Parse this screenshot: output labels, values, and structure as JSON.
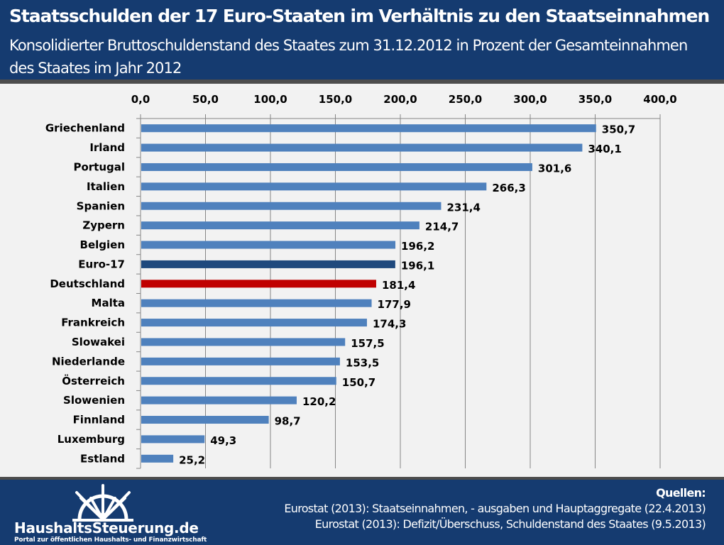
{
  "header": {
    "title": "Staatsschulden der 17 Euro-Staaten im Verhältnis zu den Staatseinnahmen",
    "subtitle": "Konsolidierter Bruttoschuldenstand des Staates zum 31.12.2012 in Prozent der Gesamteinnahmen des Staates im Jahr 2012"
  },
  "footer": {
    "logo_name": "HaushaltsSteuerung.de",
    "logo_tagline": "Portal zur öffentlichen Haushalts- und Finanzwirtschaft",
    "logo_icon": "ship-wheel-icon",
    "sources_heading": "Quellen:",
    "sources": [
      "Eurostat (2013): Staatseinnahmen, - ausgaben und Hauptaggregate (22.4.2013)",
      "Eurostat (2013): Defizit/Überschuss, Schuldenstand des Staates (9.5.2013)"
    ]
  },
  "colors": {
    "header_bg": "#153b70",
    "default_bar": "#4f81bd",
    "euro17_bar": "#1f497d",
    "germany_bar": "#c00000"
  },
  "chart_data": {
    "type": "bar",
    "orientation": "horizontal",
    "title": "Staatsschulden der 17 Euro-Staaten im Verhältnis zu den Staatseinnahmen",
    "xlabel": "",
    "ylabel": "",
    "xlim": [
      0,
      400
    ],
    "xticks": [
      "0,0",
      "50,0",
      "100,0",
      "150,0",
      "200,0",
      "250,0",
      "300,0",
      "350,0",
      "400,0"
    ],
    "x_axis_position": "top",
    "grid": true,
    "legend": "none",
    "categories": [
      "Griechenland",
      "Irland",
      "Portugal",
      "Italien",
      "Spanien",
      "Zypern",
      "Belgien",
      "Euro-17",
      "Deutschland",
      "Malta",
      "Frankreich",
      "Slowakei",
      "Niederlande",
      "Österreich",
      "Slowenien",
      "Finnland",
      "Luxemburg",
      "Estland"
    ],
    "values": [
      350.7,
      340.1,
      301.6,
      266.3,
      231.4,
      214.7,
      196.2,
      196.1,
      181.4,
      177.9,
      174.3,
      157.5,
      153.5,
      150.7,
      120.2,
      98.7,
      49.3,
      25.2
    ],
    "labels": [
      "350,7",
      "340,1",
      "301,6",
      "266,3",
      "231,4",
      "214,7",
      "196,2",
      "196,1",
      "181,4",
      "177,9",
      "174,3",
      "157,5",
      "153,5",
      "150,7",
      "120,2",
      "98,7",
      "49,3",
      "25,2"
    ],
    "highlights": {
      "Euro-17": "#1f497d",
      "Deutschland": "#c00000"
    }
  }
}
